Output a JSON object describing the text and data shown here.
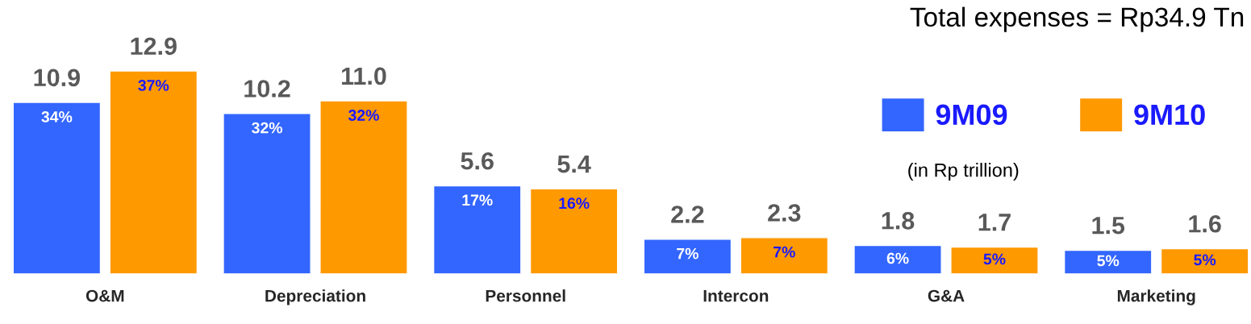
{
  "chart_data": {
    "type": "bar",
    "title": "Total expenses = Rp34.9 Tn",
    "categories": [
      "O&M",
      "Depreciation",
      "Personnel",
      "Intercon",
      "G&A",
      "Marketing"
    ],
    "series": [
      {
        "name": "9M09",
        "color": "#3366ff",
        "values": [
          10.9,
          10.2,
          5.6,
          2.2,
          1.8,
          1.5
        ],
        "value_labels": [
          "10.9",
          "10.2",
          "5.6",
          "2.2",
          "1.8",
          "1.5"
        ]
      },
      {
        "name": "9M10",
        "color": "#ff9900",
        "values": [
          12.9,
          11.0,
          5.4,
          2.3,
          1.7,
          1.6
        ],
        "value_labels": [
          "12.9",
          "11.0",
          "5.4",
          "2.3",
          "1.7",
          "1.6"
        ]
      }
    ],
    "annotations": [
      "34%",
      "32%",
      "17%",
      "7%",
      "6%",
      "5%",
      "37%",
      "32%",
      "16%",
      "7%",
      "5%",
      "5%",
      "(in Rp trillion)"
    ],
    "legend": "right"
  }
}
